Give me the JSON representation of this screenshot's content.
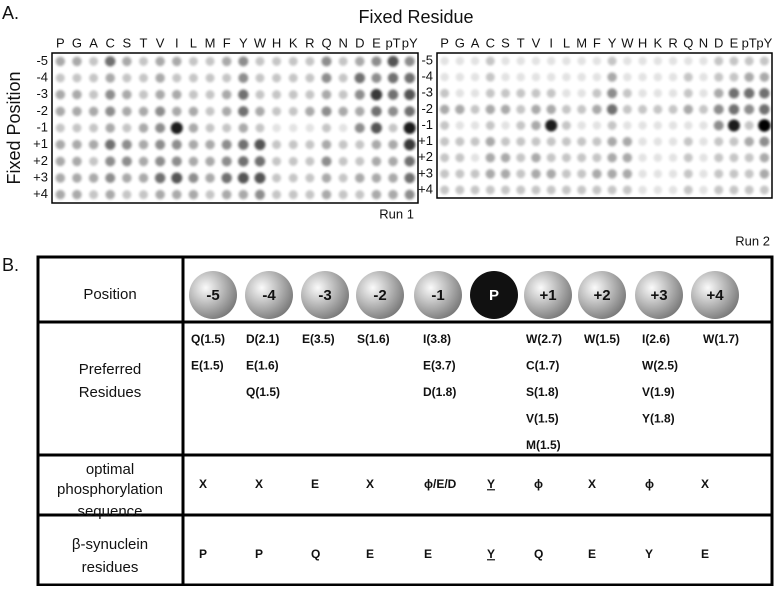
{
  "panel_a": {
    "label": "A.",
    "title": "Fixed Residue",
    "y_axis_label": "Fixed Position",
    "columns": [
      "P",
      "G",
      "A",
      "C",
      "S",
      "T",
      "V",
      "I",
      "L",
      "M",
      "F",
      "Y",
      "W",
      "H",
      "K",
      "R",
      "Q",
      "N",
      "D",
      "E",
      "pT",
      "pY"
    ],
    "rows": [
      "-5",
      "-4",
      "-3",
      "-2",
      "-1",
      "+1",
      "+2",
      "+3",
      "+4"
    ],
    "runs": [
      {
        "name": "Run 1",
        "intensities": [
          [
            3,
            3,
            2,
            5,
            3,
            2,
            3,
            3,
            2,
            2,
            3,
            4,
            2,
            2,
            2,
            2,
            4,
            2,
            3,
            4,
            6,
            4
          ],
          [
            2,
            2,
            2,
            3,
            2,
            2,
            3,
            2,
            2,
            2,
            2,
            4,
            2,
            2,
            2,
            2,
            4,
            2,
            5,
            4,
            5,
            5
          ],
          [
            3,
            3,
            2,
            4,
            3,
            2,
            3,
            3,
            2,
            2,
            3,
            5,
            2,
            2,
            2,
            2,
            3,
            2,
            4,
            7,
            5,
            6
          ],
          [
            3,
            3,
            3,
            4,
            3,
            3,
            4,
            3,
            3,
            2,
            3,
            5,
            3,
            2,
            2,
            3,
            4,
            3,
            3,
            5,
            4,
            5
          ],
          [
            2,
            2,
            2,
            3,
            2,
            3,
            4,
            8,
            3,
            2,
            2,
            3,
            2,
            1,
            1,
            1,
            2,
            1,
            4,
            6,
            2,
            8
          ],
          [
            3,
            3,
            3,
            5,
            4,
            3,
            4,
            4,
            3,
            3,
            4,
            5,
            6,
            2,
            2,
            2,
            3,
            2,
            2,
            3,
            3,
            7
          ],
          [
            3,
            3,
            2,
            4,
            4,
            3,
            4,
            4,
            3,
            3,
            4,
            5,
            5,
            2,
            2,
            2,
            4,
            2,
            2,
            3,
            3,
            5
          ],
          [
            3,
            3,
            3,
            4,
            3,
            3,
            5,
            6,
            4,
            3,
            5,
            6,
            6,
            2,
            2,
            2,
            3,
            2,
            3,
            3,
            3,
            5
          ],
          [
            3,
            3,
            2,
            3,
            2,
            2,
            3,
            3,
            3,
            2,
            3,
            3,
            4,
            2,
            2,
            2,
            3,
            2,
            2,
            3,
            3,
            4
          ]
        ]
      },
      {
        "name": "Run 2",
        "intensities": [
          [
            1,
            1,
            1,
            2,
            1,
            1,
            1,
            1,
            1,
            1,
            1,
            2,
            1,
            1,
            1,
            1,
            1,
            1,
            2,
            2,
            2,
            2
          ],
          [
            1,
            1,
            1,
            2,
            1,
            1,
            1,
            1,
            1,
            1,
            1,
            3,
            1,
            1,
            1,
            1,
            2,
            1,
            2,
            2,
            3,
            3
          ],
          [
            2,
            1,
            1,
            2,
            2,
            2,
            2,
            2,
            1,
            1,
            2,
            4,
            2,
            1,
            1,
            1,
            2,
            1,
            3,
            5,
            5,
            5
          ],
          [
            3,
            3,
            2,
            3,
            3,
            2,
            3,
            3,
            2,
            2,
            3,
            5,
            2,
            2,
            2,
            2,
            3,
            2,
            4,
            5,
            4,
            5
          ],
          [
            2,
            1,
            1,
            2,
            1,
            2,
            3,
            8,
            2,
            1,
            1,
            2,
            1,
            1,
            1,
            1,
            1,
            1,
            4,
            8,
            2,
            9
          ],
          [
            2,
            2,
            2,
            3,
            2,
            2,
            2,
            2,
            2,
            2,
            2,
            3,
            3,
            1,
            1,
            1,
            2,
            1,
            2,
            2,
            3,
            4
          ],
          [
            2,
            2,
            1,
            3,
            3,
            2,
            3,
            2,
            2,
            2,
            2,
            3,
            3,
            1,
            1,
            1,
            2,
            1,
            2,
            2,
            2,
            3
          ],
          [
            2,
            2,
            2,
            3,
            3,
            2,
            3,
            3,
            2,
            2,
            3,
            3,
            3,
            1,
            1,
            1,
            2,
            1,
            2,
            2,
            2,
            3
          ],
          [
            2,
            2,
            2,
            2,
            2,
            2,
            2,
            2,
            2,
            2,
            2,
            2,
            2,
            1,
            1,
            1,
            2,
            1,
            2,
            2,
            2,
            2
          ]
        ]
      }
    ]
  },
  "panel_b": {
    "label": "B.",
    "header": "Position",
    "positions": [
      "-5",
      "-4",
      "-3",
      "-2",
      "-1",
      "P",
      "+1",
      "+2",
      "+3",
      "+4"
    ],
    "rows": [
      {
        "label": [
          "Preferred",
          "Residues"
        ],
        "cells": [
          [
            "Q(1.5)",
            "E(1.5)"
          ],
          [
            "D(2.1)",
            "E(1.6)",
            "Q(1.5)"
          ],
          [
            "E(3.5)"
          ],
          [
            "S(1.6)"
          ],
          [
            "I(3.8)",
            "E(3.7)",
            "D(1.8)"
          ],
          [],
          [
            "W(2.7)",
            "C(1.7)",
            "S(1.8)",
            "V(1.5)",
            "M(1.5)"
          ],
          [
            "W(1.5)"
          ],
          [
            "I(2.6)",
            "W(2.5)",
            "V(1.9)",
            "Y(1.8)"
          ],
          [
            "W(1.7)"
          ]
        ]
      },
      {
        "label": [
          "optimal",
          "phosphorylation",
          "sequence"
        ],
        "cells": [
          "X",
          "X",
          "E",
          "X",
          "ϕ/E/D",
          "Y",
          "ϕ",
          "X",
          "ϕ",
          "X"
        ]
      },
      {
        "label": [
          "β-synuclein",
          "residues"
        ],
        "cells": [
          "P",
          "P",
          "Q",
          "E",
          "E",
          "Y",
          "Q",
          "E",
          "Y",
          "E"
        ]
      }
    ]
  }
}
